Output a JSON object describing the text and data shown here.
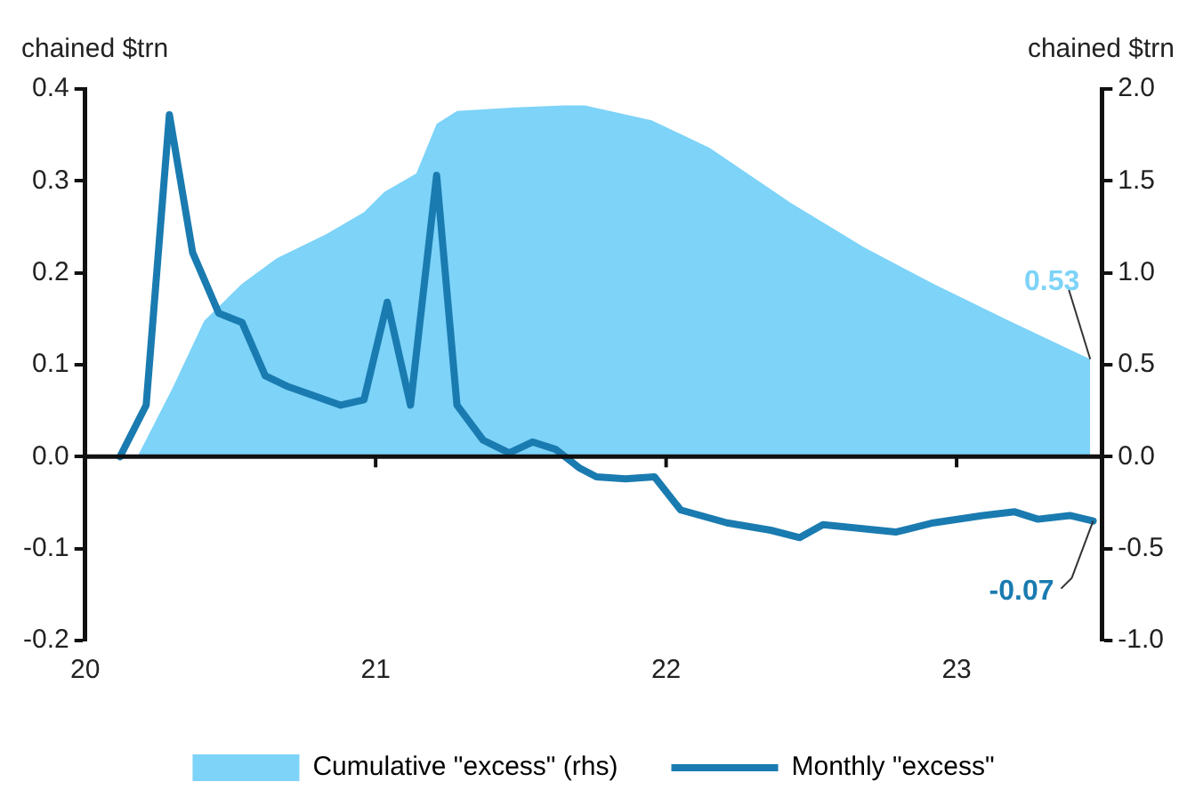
{
  "chart_data": {
    "type": "line",
    "ylabel": "chained $trn",
    "y2label": "chained $trn",
    "series": [
      {
        "name": "Cumulative \"excess\" (rhs)",
        "type": "area",
        "axis": "y2",
        "color": "#7dd3f8",
        "x": [
          20.18,
          20.3,
          20.41,
          20.54,
          20.66,
          20.83,
          20.96,
          21.03,
          21.14,
          21.21,
          21.28,
          21.48,
          21.65,
          21.72,
          21.95,
          22.15,
          22.43,
          22.68,
          22.92,
          23.18,
          23.46
        ],
        "values": [
          0,
          0.37,
          0.74,
          0.94,
          1.08,
          1.21,
          1.33,
          1.44,
          1.54,
          1.81,
          1.88,
          1.9,
          1.91,
          1.91,
          1.83,
          1.68,
          1.38,
          1.14,
          0.94,
          0.74,
          0.53
        ]
      },
      {
        "name": "Monthly \"excess\"",
        "color": "#1a7bb0",
        "x": [
          20.12,
          20.21,
          20.29,
          20.37,
          20.46,
          20.54,
          20.62,
          20.7,
          20.88,
          20.96,
          21.04,
          21.12,
          21.21,
          21.28,
          21.37,
          21.46,
          21.54,
          21.62,
          21.7,
          21.76,
          21.86,
          21.96,
          22.05,
          22.21,
          22.36,
          22.46,
          22.54,
          22.79,
          22.92,
          23.09,
          23.2,
          23.28,
          23.39,
          23.47
        ],
        "values": [
          0,
          0.056,
          0.372,
          0.222,
          0.156,
          0.146,
          0.088,
          0.076,
          0.056,
          0.062,
          0.168,
          0.056,
          0.306,
          0.056,
          0.018,
          0.004,
          0.016,
          0.008,
          -0.012,
          -0.022,
          -0.024,
          -0.022,
          -0.058,
          -0.072,
          -0.08,
          -0.088,
          -0.074,
          -0.082,
          -0.072,
          -0.064,
          -0.06,
          -0.068,
          -0.064,
          -0.07
        ]
      }
    ],
    "xlim": [
      20,
      23.5
    ],
    "xticks": [
      20,
      21,
      22,
      23
    ],
    "ylim": [
      -0.2,
      0.4
    ],
    "yticks": [
      -0.2,
      -0.1,
      {
        "value": 0,
        "label": "0.0"
      },
      0.1,
      0.2,
      0.3,
      0.4
    ],
    "y2lim": [
      -1,
      2
    ],
    "y2ticks": [
      {
        "value": -1,
        "label": "-1.0"
      },
      -0.5,
      {
        "value": 0,
        "label": "0.0"
      },
      0.5,
      {
        "value": 1,
        "label": "1.0"
      },
      1.5,
      {
        "value": 2,
        "label": "2.0"
      }
    ],
    "annotations": [
      {
        "text": "0.53",
        "x": 23.46,
        "y": 0.106
      },
      {
        "text": "-0.07",
        "x": 23.47,
        "y": -0.07
      }
    ],
    "ref_lines": [
      {
        "axis": "y",
        "value": 0,
        "color": "#111111"
      }
    ],
    "grid": false,
    "legend": "bottom",
    "marker": "none",
    "line_style": "solid"
  }
}
